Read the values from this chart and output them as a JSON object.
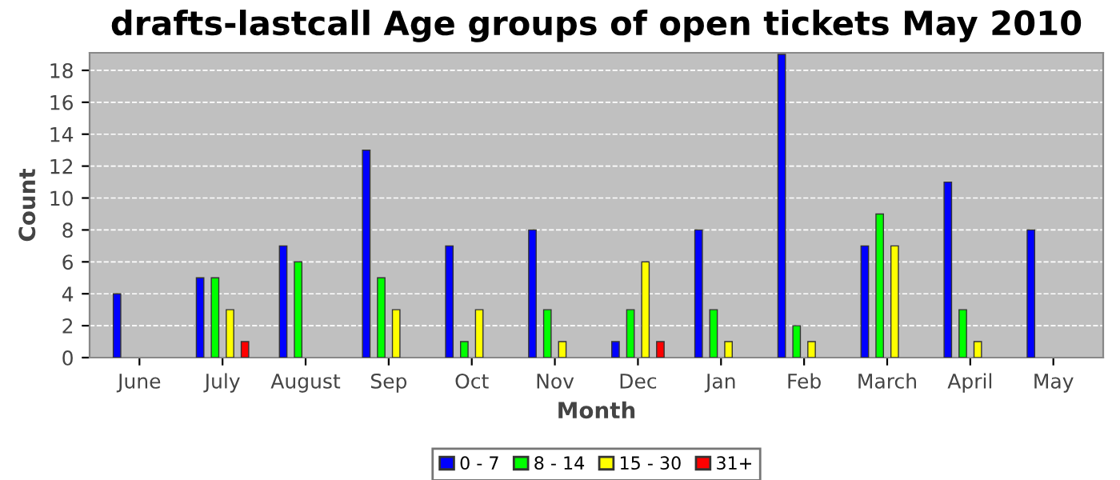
{
  "chart_data": {
    "type": "bar",
    "title": "drafts-lastcall Age groups of open tickets May 2010",
    "xlabel": "Month",
    "ylabel": "Count",
    "categories": [
      "June",
      "July",
      "August",
      "Sep",
      "Oct",
      "Nov",
      "Dec",
      "Jan",
      "Feb",
      "March",
      "April",
      "May"
    ],
    "series": [
      {
        "name": "0 - 7",
        "color": "#0000ff",
        "values": [
          4,
          5,
          7,
          13,
          7,
          8,
          1,
          8,
          19,
          7,
          11,
          8
        ]
      },
      {
        "name": "8 - 14",
        "color": "#00ff00",
        "values": [
          0,
          5,
          6,
          5,
          1,
          3,
          3,
          3,
          2,
          9,
          3,
          0
        ]
      },
      {
        "name": "15 - 30",
        "color": "#ffff00",
        "values": [
          0,
          3,
          0,
          3,
          3,
          1,
          6,
          1,
          1,
          7,
          1,
          0
        ]
      },
      {
        "name": "31+",
        "color": "#ff0000",
        "values": [
          0,
          1,
          0,
          0,
          0,
          0,
          1,
          0,
          0,
          0,
          0,
          0
        ]
      }
    ],
    "ylim": [
      0,
      19.1
    ],
    "yticks": [
      0,
      2,
      4,
      6,
      8,
      10,
      12,
      14,
      16,
      18
    ],
    "grid": "y",
    "legend": "bottom"
  }
}
